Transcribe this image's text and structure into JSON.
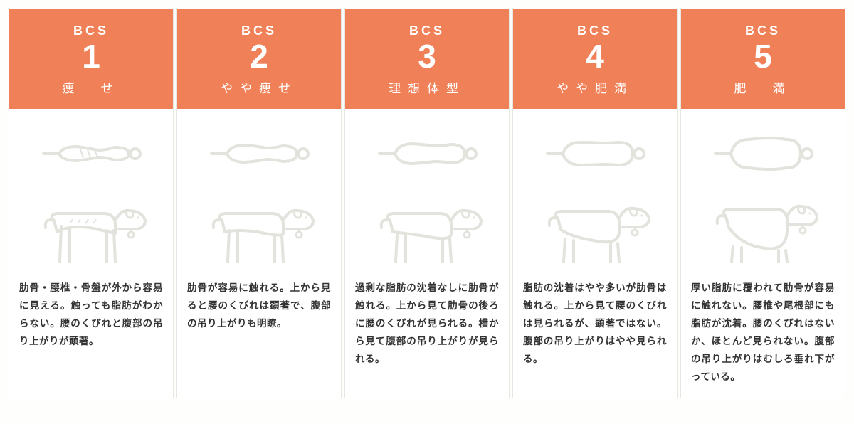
{
  "header_bg": "#f08057",
  "illustration_stroke": "#e3e3dd",
  "illustration_stroke_width": 4,
  "body_bg": "#ffffff",
  "text_color": "#333333",
  "columns": [
    {
      "bcs": "BCS",
      "num": "1",
      "label": "痩　せ",
      "desc": "肋骨・腰椎・骨盤が外から容易に見える。触っても脂肪がわからない。腰のくびれと腹部の吊り上がりが顕著。",
      "body_shape": 1
    },
    {
      "bcs": "BCS",
      "num": "2",
      "label": "やや痩せ",
      "desc": "肋骨が容易に触れる。上から見ると腰のくびれは顕著で、腹部の吊り上がりも明瞭。",
      "body_shape": 2
    },
    {
      "bcs": "BCS",
      "num": "3",
      "label": "理想体型",
      "desc": "過剰な脂肪の沈着なしに肋骨が触れる。上から見て肋骨の後ろに腰のくびれが見られる。横から見て腹部の吊り上がりが見られる。",
      "body_shape": 3
    },
    {
      "bcs": "BCS",
      "num": "4",
      "label": "やや肥満",
      "desc": "脂肪の沈着はやや多いが肋骨は触れる。上から見て腰のくびれは見られるが、顕著ではない。腹部の吊り上がりはやや見られる。",
      "body_shape": 4
    },
    {
      "bcs": "BCS",
      "num": "5",
      "label": "肥　満",
      "desc": "厚い脂肪に覆われて肋骨が容易に触れない。腰椎や尾根部にも脂肪が沈着。腰のくびれはないか、ほとんど見られない。腹部の吊り上がりはむしろ垂れ下がっている。",
      "body_shape": 5
    }
  ]
}
